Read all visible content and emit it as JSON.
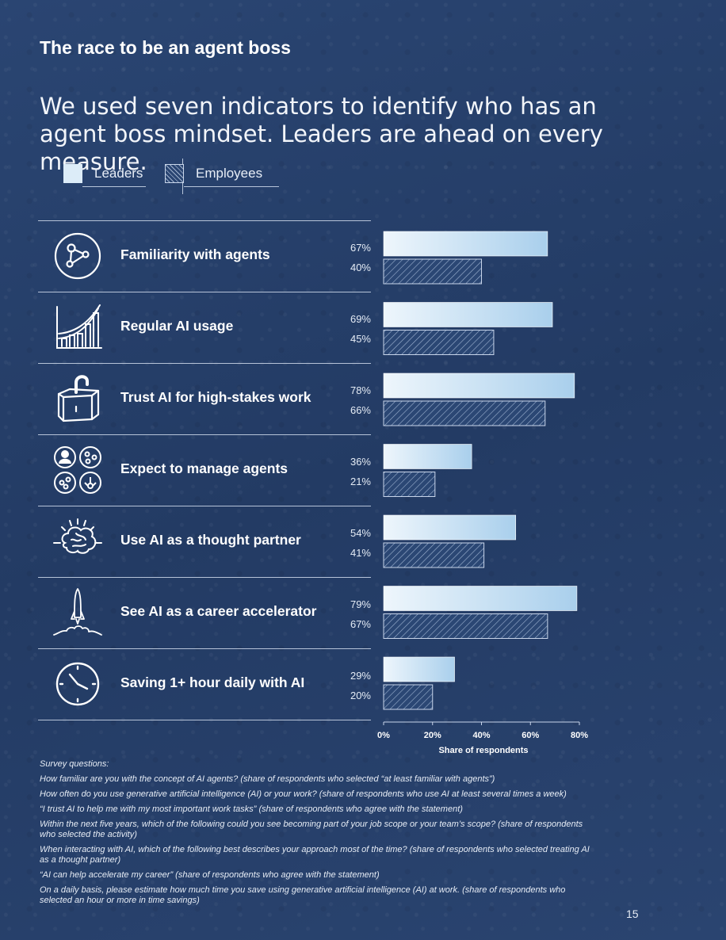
{
  "title": "The race to be an agent boss",
  "subtitle": "We used seven indicators to identify who has an agent boss mindset. Leaders are ahead on every measure.",
  "legend": {
    "leaders": "Leaders",
    "employees": "Employees"
  },
  "rows": [
    {
      "label": "Familiarity with agents",
      "icon": "network-icon",
      "leaders_pct": "67%",
      "employees_pct": "40%"
    },
    {
      "label": "Regular AI usage",
      "icon": "growth-chart-icon",
      "leaders_pct": "69%",
      "employees_pct": "45%"
    },
    {
      "label": "Trust AI for high-stakes work",
      "icon": "unlocked-padlock-icon",
      "leaders_pct": "78%",
      "employees_pct": "66%"
    },
    {
      "label": "Expect to manage agents",
      "icon": "team-agents-icon",
      "leaders_pct": "36%",
      "employees_pct": "21%"
    },
    {
      "label": "Use AI as a thought partner",
      "icon": "brain-icon",
      "leaders_pct": "54%",
      "employees_pct": "41%"
    },
    {
      "label": "See AI as a career accelerator",
      "icon": "rocket-icon",
      "leaders_pct": "79%",
      "employees_pct": "67%"
    },
    {
      "label": "Saving 1+ hour daily with AI",
      "icon": "clock-icon",
      "leaders_pct": "29%",
      "employees_pct": "20%"
    }
  ],
  "chart_data": {
    "type": "bar",
    "orientation": "horizontal",
    "categories": [
      "Familiarity with agents",
      "Regular AI usage",
      "Trust AI for high-stakes work",
      "Expect to manage agents",
      "Use AI as a thought partner",
      "See AI as a career accelerator",
      "Saving 1+ hour daily with AI"
    ],
    "series": [
      {
        "name": "Leaders",
        "values": [
          67,
          69,
          78,
          36,
          54,
          79,
          29
        ],
        "color": "#dcecf8"
      },
      {
        "name": "Employees",
        "values": [
          40,
          45,
          66,
          21,
          41,
          67,
          20
        ],
        "color": "#2a4572"
      }
    ],
    "xlabel": "Share of respondents",
    "xticks": [
      "0%",
      "20%",
      "40%",
      "60%",
      "80%"
    ],
    "xlim": [
      0,
      80
    ],
    "legend_position": "top-left",
    "grid": false
  },
  "notes": {
    "heading": "Survey questions:",
    "items": [
      "How familiar are you with the concept of AI agents? (share of respondents who selected “at least familiar with agents”)",
      "How often do you use generative artificial intelligence (AI) or your work? (share of respondents who use AI at least several times a week)",
      "“I trust AI to help me with my most important work tasks” (share of respondents who agree with the statement)",
      "Within the next five years, which of the following could you see becoming part of your job scope or your team’s scope? (share of respondents who selected the activity)",
      "When interacting with AI, which of the following best describes your approach most of the time? (share of respondents who selected treating AI as a thought partner)",
      "“AI can help accelerate my career” (share of respondents who agree with the statement)",
      "On a daily basis, please estimate how much time you save using generative artificial intelligence (AI) at work. (share of respondents who selected an hour or more in time savings)"
    ]
  },
  "page_number": "15"
}
